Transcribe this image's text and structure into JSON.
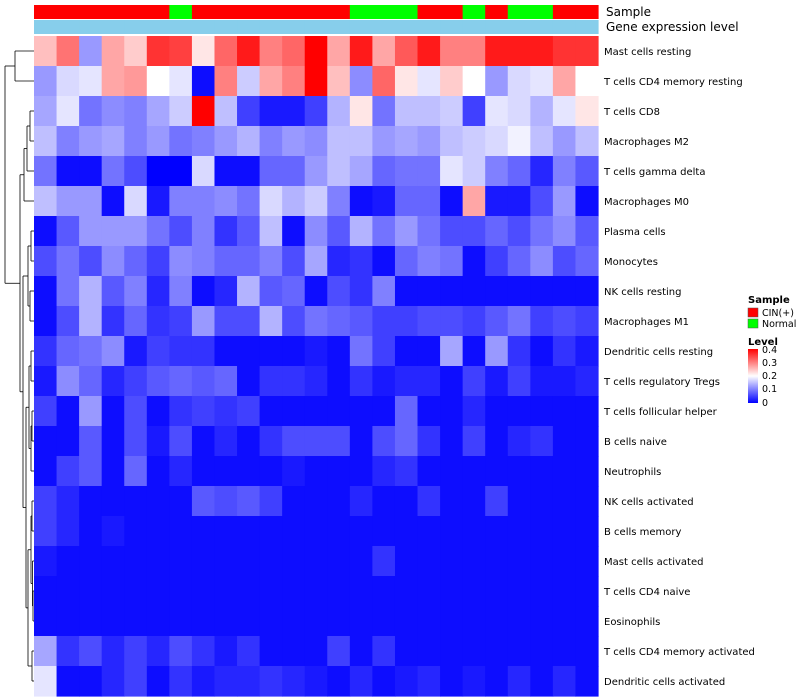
{
  "chart_data": {
    "type": "heatmap",
    "annotation_labels": [
      "Sample",
      "Gene expression level"
    ],
    "sample_groups": [
      "CIN(+)",
      "CIN(+)",
      "CIN(+)",
      "CIN(+)",
      "CIN(+)",
      "CIN(+)",
      "Normal",
      "CIN(+)",
      "CIN(+)",
      "CIN(+)",
      "CIN(+)",
      "CIN(+)",
      "CIN(+)",
      "CIN(+)",
      "Normal",
      "Normal",
      "Normal",
      "CIN(+)",
      "CIN(+)",
      "Normal",
      "CIN(+)",
      "Normal",
      "Normal",
      "CIN(+)",
      "CIN(+)"
    ],
    "rows": [
      "Mast cells resting",
      "T cells CD4 memory resting",
      "T cells CD8",
      "Macrophages M2",
      "T cells gamma delta",
      "Macrophages M0",
      "Plasma cells",
      "Monocytes",
      "NK cells resting",
      "Macrophages M1",
      "Dendritic cells resting",
      "T cells regulatory  Tregs",
      "T cells follicular helper",
      "B cells naive",
      "Neutrophils",
      "NK cells activated",
      "B cells memory",
      "Mast cells activated",
      "T cells CD4 naive",
      "Eosinophils",
      "T cells CD4 memory activated",
      "Dendritic cells activated"
    ],
    "values": [
      [
        0.25,
        0.31,
        0.12,
        0.27,
        0.24,
        0.36,
        0.35,
        0.22,
        0.32,
        0.38,
        0.3,
        0.32,
        0.4,
        0.27,
        0.38,
        0.27,
        0.33,
        0.38,
        0.3,
        0.3,
        0.38,
        0.38,
        0.38,
        0.36,
        0.36
      ],
      [
        0.12,
        0.17,
        0.18,
        0.27,
        0.28,
        0.2,
        0.18,
        0.01,
        0.3,
        0.16,
        0.27,
        0.3,
        0.4,
        0.25,
        0.11,
        0.32,
        0.22,
        0.18,
        0.24,
        0.2,
        0.12,
        0.17,
        0.18,
        0.27,
        0.2
      ],
      [
        0.13,
        0.18,
        0.09,
        0.11,
        0.1,
        0.13,
        0.16,
        0.4,
        0.15,
        0.05,
        0.02,
        0.02,
        0.05,
        0.14,
        0.22,
        0.09,
        0.15,
        0.15,
        0.16,
        0.05,
        0.18,
        0.17,
        0.14,
        0.18,
        0.22
      ],
      [
        0.15,
        0.1,
        0.12,
        0.13,
        0.1,
        0.12,
        0.09,
        0.1,
        0.12,
        0.14,
        0.1,
        0.12,
        0.11,
        0.15,
        0.15,
        0.12,
        0.13,
        0.12,
        0.15,
        0.16,
        0.17,
        0.19,
        0.15,
        0.12,
        0.15
      ],
      [
        0.09,
        0.01,
        0.01,
        0.09,
        0.06,
        0.0,
        0.0,
        0.17,
        0.01,
        0.01,
        0.08,
        0.08,
        0.12,
        0.15,
        0.13,
        0.08,
        0.09,
        0.09,
        0.18,
        0.16,
        0.1,
        0.08,
        0.03,
        0.1,
        0.07
      ],
      [
        0.15,
        0.12,
        0.12,
        0.01,
        0.17,
        0.02,
        0.1,
        0.1,
        0.11,
        0.09,
        0.17,
        0.14,
        0.16,
        0.1,
        0.01,
        0.02,
        0.08,
        0.08,
        0.01,
        0.27,
        0.02,
        0.02,
        0.06,
        0.12,
        0.01
      ],
      [
        0.01,
        0.07,
        0.12,
        0.12,
        0.12,
        0.09,
        0.06,
        0.1,
        0.04,
        0.07,
        0.15,
        0.01,
        0.11,
        0.07,
        0.14,
        0.09,
        0.12,
        0.09,
        0.06,
        0.06,
        0.08,
        0.06,
        0.09,
        0.11,
        0.07
      ],
      [
        0.06,
        0.09,
        0.06,
        0.11,
        0.08,
        0.05,
        0.11,
        0.1,
        0.08,
        0.08,
        0.1,
        0.06,
        0.13,
        0.03,
        0.04,
        0.01,
        0.08,
        0.1,
        0.09,
        0.01,
        0.05,
        0.08,
        0.11,
        0.06,
        0.08
      ],
      [
        0.01,
        0.09,
        0.14,
        0.07,
        0.1,
        0.03,
        0.1,
        0.01,
        0.03,
        0.14,
        0.07,
        0.08,
        0.01,
        0.06,
        0.04,
        0.1,
        0.01,
        0.01,
        0.01,
        0.01,
        0.01,
        0.01,
        0.01,
        0.01,
        0.01
      ],
      [
        0.01,
        0.06,
        0.14,
        0.04,
        0.08,
        0.04,
        0.05,
        0.12,
        0.06,
        0.06,
        0.14,
        0.06,
        0.09,
        0.08,
        0.07,
        0.05,
        0.05,
        0.06,
        0.06,
        0.05,
        0.07,
        0.09,
        0.05,
        0.06,
        0.05
      ],
      [
        0.04,
        0.08,
        0.09,
        0.11,
        0.02,
        0.05,
        0.04,
        0.04,
        0.01,
        0.01,
        0.01,
        0.01,
        0.02,
        0.01,
        0.09,
        0.05,
        0.01,
        0.01,
        0.13,
        0.01,
        0.12,
        0.04,
        0.01,
        0.04,
        0.02
      ],
      [
        0.02,
        0.11,
        0.08,
        0.03,
        0.05,
        0.07,
        0.08,
        0.07,
        0.08,
        0.01,
        0.04,
        0.04,
        0.03,
        0.01,
        0.04,
        0.02,
        0.03,
        0.03,
        0.01,
        0.05,
        0.02,
        0.05,
        0.02,
        0.02,
        0.03
      ],
      [
        0.05,
        0.01,
        0.12,
        0.01,
        0.06,
        0.01,
        0.04,
        0.05,
        0.04,
        0.05,
        0.01,
        0.01,
        0.01,
        0.01,
        0.01,
        0.01,
        0.08,
        0.01,
        0.01,
        0.03,
        0.01,
        0.01,
        0.01,
        0.01,
        0.01
      ],
      [
        0.01,
        0.01,
        0.07,
        0.01,
        0.06,
        0.02,
        0.06,
        0.01,
        0.03,
        0.01,
        0.04,
        0.06,
        0.06,
        0.06,
        0.01,
        0.06,
        0.08,
        0.04,
        0.01,
        0.05,
        0.01,
        0.03,
        0.04,
        0.01,
        0.01
      ],
      [
        0.01,
        0.05,
        0.07,
        0.01,
        0.08,
        0.01,
        0.03,
        0.01,
        0.01,
        0.01,
        0.01,
        0.02,
        0.01,
        0.01,
        0.01,
        0.03,
        0.04,
        0.01,
        0.01,
        0.01,
        0.01,
        0.01,
        0.01,
        0.01,
        0.01
      ],
      [
        0.05,
        0.03,
        0.01,
        0.01,
        0.01,
        0.01,
        0.01,
        0.07,
        0.06,
        0.07,
        0.05,
        0.01,
        0.01,
        0.01,
        0.03,
        0.01,
        0.01,
        0.04,
        0.01,
        0.01,
        0.05,
        0.01,
        0.01,
        0.01,
        0.01
      ],
      [
        0.05,
        0.03,
        0.01,
        0.02,
        0.01,
        0.01,
        0.01,
        0.01,
        0.01,
        0.01,
        0.01,
        0.01,
        0.01,
        0.01,
        0.01,
        0.01,
        0.01,
        0.01,
        0.01,
        0.01,
        0.01,
        0.01,
        0.01,
        0.01,
        0.01
      ],
      [
        0.02,
        0.01,
        0.01,
        0.01,
        0.01,
        0.01,
        0.01,
        0.01,
        0.01,
        0.01,
        0.01,
        0.01,
        0.01,
        0.01,
        0.01,
        0.04,
        0.01,
        0.01,
        0.01,
        0.01,
        0.01,
        0.01,
        0.01,
        0.01,
        0.01
      ],
      [
        0.01,
        0.01,
        0.01,
        0.01,
        0.01,
        0.01,
        0.01,
        0.01,
        0.01,
        0.01,
        0.01,
        0.01,
        0.01,
        0.01,
        0.01,
        0.01,
        0.01,
        0.01,
        0.01,
        0.01,
        0.01,
        0.01,
        0.01,
        0.01,
        0.01
      ],
      [
        0.01,
        0.01,
        0.01,
        0.01,
        0.01,
        0.01,
        0.01,
        0.01,
        0.01,
        0.01,
        0.01,
        0.01,
        0.01,
        0.01,
        0.01,
        0.01,
        0.01,
        0.01,
        0.01,
        0.01,
        0.01,
        0.01,
        0.01,
        0.01,
        0.01
      ],
      [
        0.13,
        0.04,
        0.06,
        0.03,
        0.05,
        0.03,
        0.06,
        0.04,
        0.02,
        0.04,
        0.01,
        0.01,
        0.01,
        0.05,
        0.01,
        0.04,
        0.01,
        0.01,
        0.01,
        0.01,
        0.01,
        0.01,
        0.01,
        0.01,
        0.01
      ],
      [
        0.18,
        0.01,
        0.01,
        0.03,
        0.05,
        0.01,
        0.04,
        0.02,
        0.03,
        0.03,
        0.04,
        0.03,
        0.02,
        0.01,
        0.03,
        0.01,
        0.02,
        0.03,
        0.01,
        0.02,
        0.01,
        0.03,
        0.01,
        0.03,
        0.01
      ]
    ],
    "legend": {
      "sample_title": "Sample",
      "sample_entries": [
        {
          "label": "CIN(+)",
          "color": "#ff0000"
        },
        {
          "label": "Normal",
          "color": "#00ff00"
        }
      ],
      "level_title": "Level",
      "level_ticks": [
        "0.4",
        "0.3",
        "0.2",
        "0.1",
        "0"
      ],
      "level_range": [
        0,
        0.4
      ]
    },
    "colors": {
      "low": "#0000ff",
      "mid": "#ffffff",
      "high": "#ff0000",
      "expression_bar": "#87ceeb"
    }
  }
}
